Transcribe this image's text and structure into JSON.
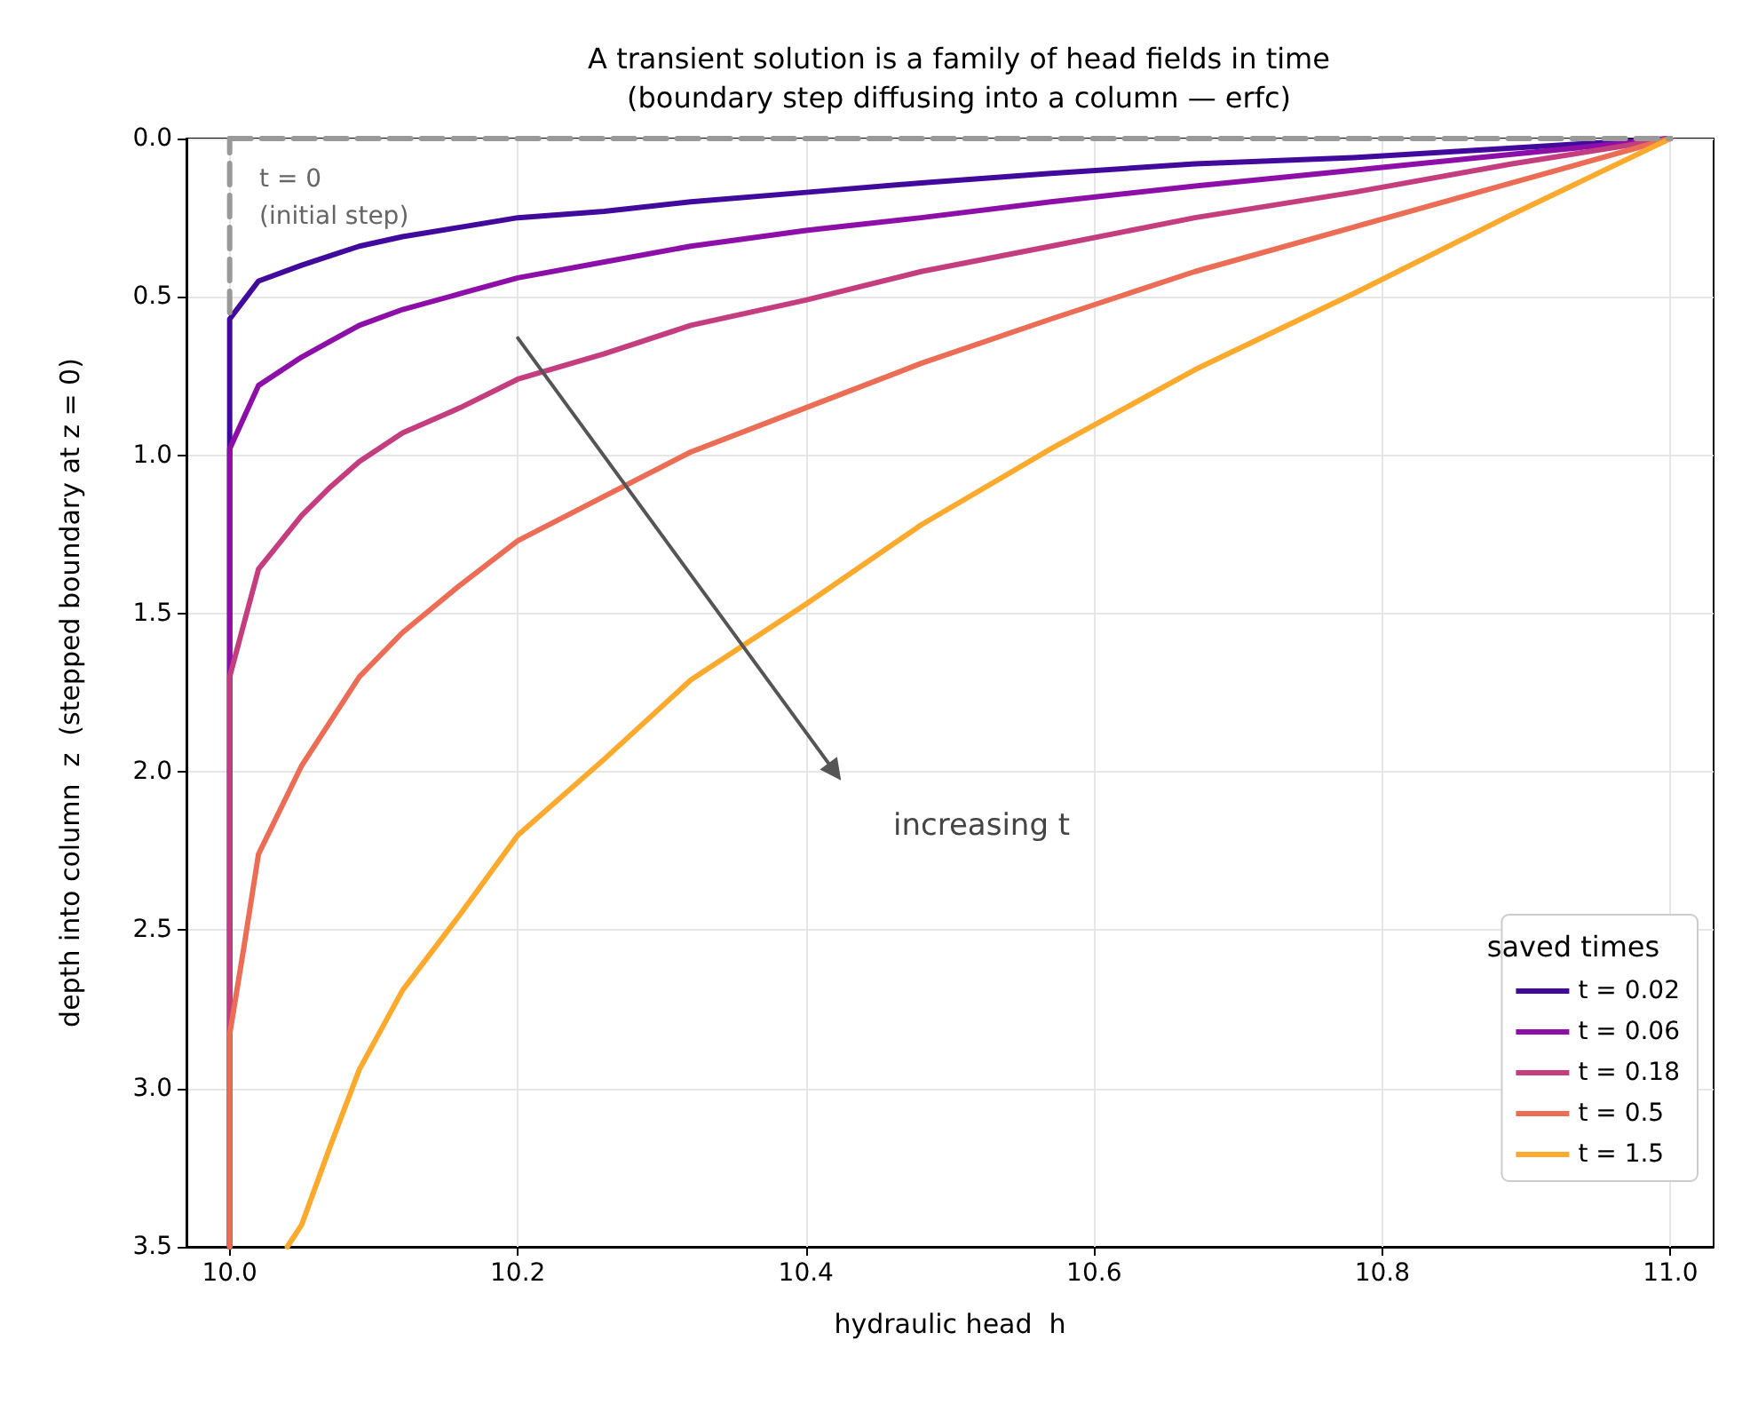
{
  "chart_data": {
    "type": "line",
    "title": "A transient solution is a family of head fields in time",
    "subtitle": "(boundary step diffusing into a column — erfc)",
    "xlabel": "hydraulic head  h",
    "ylabel": "depth into column  z  (stepped boundary at z = 0)",
    "legend_title": "saved times",
    "xlim": [
      9.97,
      11.03
    ],
    "xticks": [
      {
        "value": 10,
        "label": "10.0"
      },
      10.2,
      10.4,
      10.6,
      10.8,
      {
        "value": 11,
        "label": "11.0"
      }
    ],
    "ylim": [
      3.5,
      0
    ],
    "yticks": [
      {
        "value": 0,
        "label": "0.0"
      },
      0.5,
      {
        "value": 1,
        "label": "1.0"
      },
      1.5,
      {
        "value": 2,
        "label": "2.0"
      },
      2.5,
      {
        "value": 3,
        "label": "3.0"
      },
      3.5
    ],
    "grid": true,
    "legend": "bottom right",
    "marker": "none",
    "line_style": "solid",
    "series": [
      {
        "name": "t = 0.02",
        "color": "#410a9c",
        "x": [
          11,
          10.89,
          10.78,
          10.67,
          10.57,
          10.48,
          10.4,
          10.32,
          10.26,
          10.2,
          10.16,
          10.12,
          10.09,
          10.07,
          10.05,
          10.02,
          10.01,
          10.0,
          10.0,
          10.0
        ],
        "values": [
          0,
          0.03,
          0.06,
          0.08,
          0.11,
          0.14,
          0.17,
          0.2,
          0.23,
          0.25,
          0.28,
          0.31,
          0.34,
          0.37,
          0.4,
          0.45,
          0.51,
          0.57,
          0.68,
          3.5
        ]
      },
      {
        "name": "t = 0.06",
        "color": "#8d0fa8",
        "x": [
          11,
          10.89,
          10.78,
          10.67,
          10.57,
          10.48,
          10.4,
          10.32,
          10.26,
          10.2,
          10.16,
          10.12,
          10.09,
          10.07,
          10.05,
          10.02,
          10.01,
          10.0,
          10.0,
          10.0
        ],
        "values": [
          0,
          0.05,
          0.1,
          0.15,
          0.2,
          0.25,
          0.29,
          0.34,
          0.39,
          0.44,
          0.49,
          0.54,
          0.59,
          0.64,
          0.69,
          0.78,
          0.88,
          0.98,
          1.18,
          3.5
        ]
      },
      {
        "name": "t = 0.18",
        "color": "#c43e7f",
        "x": [
          11,
          10.89,
          10.78,
          10.67,
          10.57,
          10.48,
          10.4,
          10.32,
          10.26,
          10.2,
          10.16,
          10.12,
          10.09,
          10.07,
          10.05,
          10.02,
          10.01,
          10.0,
          10.0,
          10.0
        ],
        "values": [
          0,
          0.08,
          0.17,
          0.25,
          0.34,
          0.42,
          0.51,
          0.59,
          0.68,
          0.76,
          0.85,
          0.93,
          1.02,
          1.1,
          1.19,
          1.36,
          1.53,
          1.7,
          2.04,
          3.5
        ]
      },
      {
        "name": "t = 0.5",
        "color": "#ec6d55",
        "x": [
          11,
          10.89,
          10.78,
          10.67,
          10.57,
          10.48,
          10.4,
          10.32,
          10.26,
          10.2,
          10.16,
          10.12,
          10.09,
          10.07,
          10.05,
          10.02,
          10.01,
          10.0,
          10.0,
          10.0
        ],
        "values": [
          0,
          0.14,
          0.28,
          0.42,
          0.57,
          0.71,
          0.85,
          0.99,
          1.13,
          1.27,
          1.41,
          1.56,
          1.7,
          1.84,
          1.98,
          2.26,
          2.55,
          2.83,
          3.39,
          3.5
        ]
      },
      {
        "name": "t = 1.5",
        "color": "#fbaa2e",
        "x": [
          11,
          10.89,
          10.78,
          10.67,
          10.57,
          10.48,
          10.4,
          10.32,
          10.26,
          10.2,
          10.16,
          10.12,
          10.09,
          10.07,
          10.05,
          10.04
        ],
        "values": [
          0,
          0.24,
          0.49,
          0.73,
          0.98,
          1.22,
          1.47,
          1.71,
          1.96,
          2.2,
          2.45,
          2.69,
          2.94,
          3.18,
          3.43,
          3.5
        ]
      },
      {
        "color": "#999999",
        "line_style": "dashed",
        "x": [
          10.0,
          10.0
        ],
        "values": [
          0.55,
          0
        ]
      },
      {
        "color": "#999999",
        "line_style": "dashed",
        "x": [
          10.0,
          11.0
        ],
        "values": [
          0,
          0
        ]
      },
      {
        "color": "#555555",
        "marker": "triangle",
        "x": [
          10.2,
          10.42
        ],
        "values": [
          0.63,
          2.0
        ]
      }
    ],
    "annotations": [
      "t = 0",
      "(initial step)",
      "increasing t"
    ]
  }
}
